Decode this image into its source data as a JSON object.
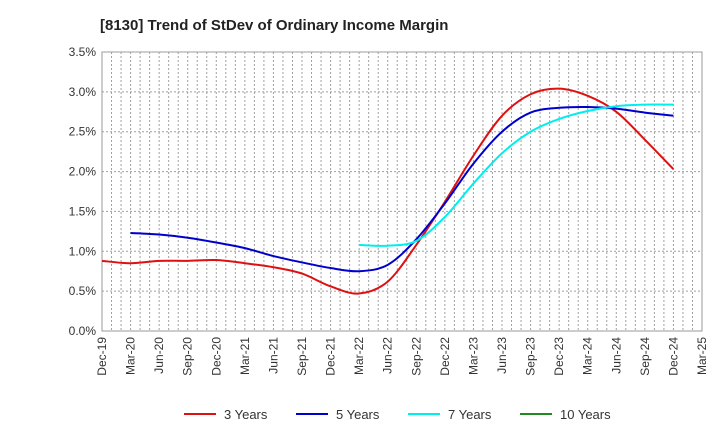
{
  "chart_data": {
    "type": "line",
    "title": "[8130]  Trend of StDev of Ordinary Income Margin",
    "xlabel": "",
    "ylabel": "",
    "categories": [
      "Dec-19",
      "Mar-20",
      "Jun-20",
      "Sep-20",
      "Dec-20",
      "Mar-21",
      "Jun-21",
      "Sep-21",
      "Dec-21",
      "Mar-22",
      "Jun-22",
      "Sep-22",
      "Dec-22",
      "Mar-23",
      "Jun-23",
      "Sep-23",
      "Dec-23",
      "Mar-24",
      "Jun-24",
      "Sep-24",
      "Dec-24",
      "Mar-25"
    ],
    "y_ticks": [
      "0.0%",
      "0.5%",
      "1.0%",
      "1.5%",
      "2.0%",
      "2.5%",
      "3.0%",
      "3.5%"
    ],
    "ylim": [
      0,
      3.5
    ],
    "y_unit": "%",
    "grid": true,
    "legend_position": "bottom",
    "series": [
      {
        "name": "3 Years",
        "color": "#dd1111",
        "values": [
          0.88,
          0.85,
          0.88,
          0.88,
          0.89,
          0.85,
          0.8,
          0.72,
          0.56,
          0.47,
          0.62,
          1.08,
          1.62,
          2.2,
          2.7,
          2.97,
          3.04,
          2.95,
          2.75,
          2.4,
          2.03,
          null
        ]
      },
      {
        "name": "5 Years",
        "color": "#0000cc",
        "values": [
          null,
          1.23,
          1.21,
          1.17,
          1.11,
          1.04,
          0.94,
          0.86,
          0.79,
          0.75,
          0.83,
          1.15,
          1.6,
          2.1,
          2.5,
          2.74,
          2.8,
          2.81,
          2.79,
          2.74,
          2.7,
          null
        ]
      },
      {
        "name": "7 Years",
        "color": "#00eeee",
        "values": [
          null,
          null,
          null,
          null,
          null,
          null,
          null,
          null,
          null,
          1.08,
          1.07,
          1.13,
          1.43,
          1.85,
          2.23,
          2.5,
          2.66,
          2.76,
          2.82,
          2.84,
          2.84,
          null
        ]
      },
      {
        "name": "10 Years",
        "color": "#228822",
        "values": [
          null,
          null,
          null,
          null,
          null,
          null,
          null,
          null,
          null,
          null,
          null,
          null,
          null,
          null,
          null,
          null,
          null,
          null,
          null,
          null,
          null,
          null
        ]
      }
    ]
  }
}
